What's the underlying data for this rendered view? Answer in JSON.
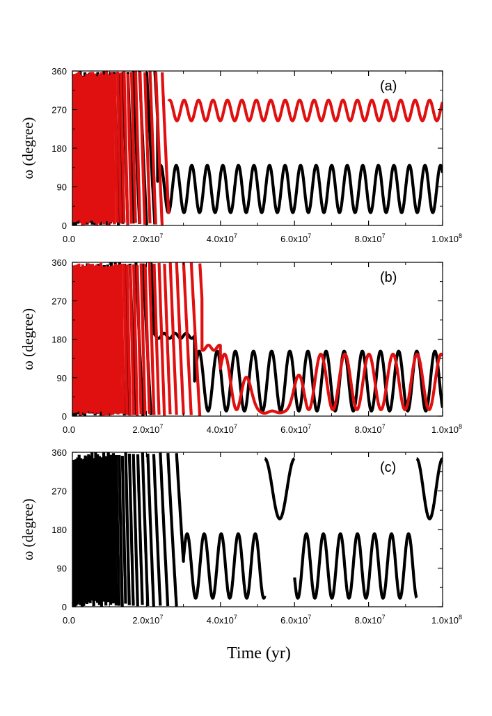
{
  "chart_data": [
    {
      "type": "line",
      "panel_label": "(a)",
      "ylabel": "ω (degree)",
      "xlim": [
        0,
        100000000.0
      ],
      "ylim": [
        0,
        360
      ],
      "yticks": [
        "0",
        "90",
        "180",
        "270",
        "360"
      ],
      "xticks": [
        {
          "mant": "0.0",
          "exp": ""
        },
        {
          "mant": "2.0x10",
          "exp": "7"
        },
        {
          "mant": "4.0x10",
          "exp": "7"
        },
        {
          "mant": "6.0x10",
          "exp": "7"
        },
        {
          "mant": "8.0x10",
          "exp": "7"
        },
        {
          "mant": "1.0x10",
          "exp": "8"
        }
      ],
      "series": [
        {
          "name": "black",
          "color": "#000000",
          "circ_end": 23000000.0,
          "circ_start_period": 600000.0,
          "circ_end_period": 2500000.0,
          "center": 85,
          "amp": 55,
          "period": 4200000.0,
          "phase": 0.3
        },
        {
          "name": "red",
          "color": "#e01010",
          "circ_end": 26000000.0,
          "circ_start_period": 500000.0,
          "circ_end_period": 2000000.0,
          "center": 268,
          "amp": 24,
          "period": 3900000.0,
          "phase": 1.1
        }
      ]
    },
    {
      "type": "line",
      "panel_label": "(b)",
      "ylabel": "ω (degree)",
      "xlim": [
        0,
        100000000.0
      ],
      "ylim": [
        0,
        360
      ],
      "yticks": [
        "0",
        "90",
        "180",
        "270",
        "360"
      ],
      "xticks": [
        {
          "mant": "0.0",
          "exp": ""
        },
        {
          "mant": "2.0x10",
          "exp": "7"
        },
        {
          "mant": "4.0x10",
          "exp": "7"
        },
        {
          "mant": "6.0x10",
          "exp": "7"
        },
        {
          "mant": "8.0x10",
          "exp": "7"
        },
        {
          "mant": "1.0x10",
          "exp": "8"
        }
      ],
      "series": [
        {
          "name": "black",
          "color": "#000000",
          "circ_end": 22000000.0,
          "circ_start_period": 600000.0,
          "circ_end_period": 2500000.0,
          "plateau_value": 188,
          "plateau_end": 33000000.0,
          "center": 82,
          "amp": 70,
          "period": 4900000.0,
          "phase": 0.0
        },
        {
          "name": "red",
          "color": "#e01010",
          "circ_end": 35000000.0,
          "circ_start_period": 500000.0,
          "circ_end_period": 2500000.0,
          "plateau_value": 160,
          "plateau_end": 40000000.0,
          "center": 80,
          "amp": 65,
          "period": 6500000.0,
          "phase": 0.5,
          "dip_center": 54000000.0,
          "dip_width": 9000000.0
        }
      ]
    },
    {
      "type": "line",
      "panel_label": "(c)",
      "ylabel": "ω (degree)",
      "xlabel": "Time (yr)",
      "xlim": [
        0,
        100000000.0
      ],
      "ylim": [
        0,
        360
      ],
      "yticks": [
        "0",
        "90",
        "180",
        "270",
        "360"
      ],
      "xticks": [
        {
          "mant": "0.0",
          "exp": ""
        },
        {
          "mant": "2.0x10",
          "exp": "7"
        },
        {
          "mant": "4.0x10",
          "exp": "7"
        },
        {
          "mant": "6.0x10",
          "exp": "7"
        },
        {
          "mant": "8.0x10",
          "exp": "7"
        },
        {
          "mant": "1.0x10",
          "exp": "8"
        }
      ],
      "series": [
        {
          "name": "black",
          "color": "#000000",
          "circ_end": 30000000.0,
          "circ_start_period": 400000.0,
          "circ_end_period": 2800000.0,
          "center": 95,
          "amp": 75,
          "period": 4600000.0,
          "phase": 0.2,
          "high_segments": [
            [
              52000000.0,
              60000000.0
            ],
            [
              93000000.0,
              100000000.0
            ]
          ]
        }
      ]
    }
  ]
}
